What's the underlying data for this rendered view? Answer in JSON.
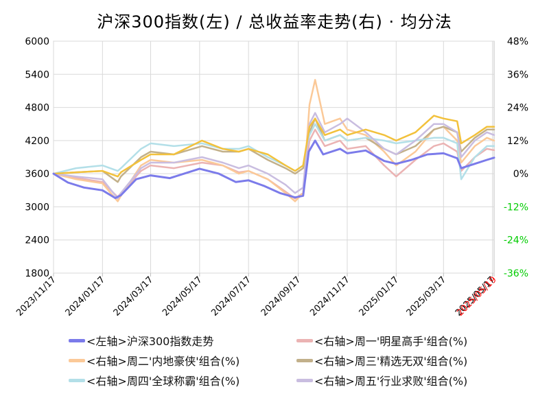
{
  "title": "沪深300指数(左)  /  总收益率走势(右) · 均分法",
  "chart_data": {
    "type": "line",
    "title": "沪深300指数(左)  /  总收益率走势(右) · 均分法",
    "x_start": "2023/11/17",
    "x_end": "2025/05/19",
    "x_tick_labels": [
      "2023/11/17",
      "2024/01/17",
      "2024/03/17",
      "2024/05/17",
      "2024/07/17",
      "2024/09/17",
      "2024/11/17",
      "2025/01/17",
      "2025/03/17",
      "2025/05/17"
    ],
    "x_last_label": "2025/05/19",
    "x_last_label_color": "#ff0000",
    "y_left": {
      "min": 1800,
      "max": 6000,
      "ticks": [
        "1800",
        "2400",
        "3000",
        "3600",
        "4200",
        "4800",
        "5400",
        "6000"
      ]
    },
    "y_right": {
      "min": -36,
      "max": 48,
      "ticks": [
        "-36%",
        "-24%",
        "-12%",
        "0%",
        "12%",
        "24%",
        "36%",
        "48%"
      ],
      "positive_color": "#000000",
      "negative_color": "#00cc00"
    },
    "grid": true,
    "legend_position": "bottom",
    "series": [
      {
        "name": "<左轴>沪深300指数走势",
        "axis": "left",
        "color": "#7b7bea",
        "points": [
          [
            "2023/11/17",
            3600
          ],
          [
            "2023/12/05",
            3440
          ],
          [
            "2023/12/25",
            3350
          ],
          [
            "2024/01/17",
            3300
          ],
          [
            "2024/02/02",
            3160
          ],
          [
            "2024/02/09",
            3210
          ],
          [
            "2024/02/28",
            3500
          ],
          [
            "2024/03/17",
            3570
          ],
          [
            "2024/04/10",
            3520
          ],
          [
            "2024/05/17",
            3690
          ],
          [
            "2024/06/10",
            3600
          ],
          [
            "2024/07/01",
            3450
          ],
          [
            "2024/07/17",
            3480
          ],
          [
            "2024/08/05",
            3380
          ],
          [
            "2024/08/25",
            3250
          ],
          [
            "2024/09/13",
            3170
          ],
          [
            "2024/09/23",
            3200
          ],
          [
            "2024/09/30",
            4000
          ],
          [
            "2024/10/08",
            4200
          ],
          [
            "2024/10/18",
            3950
          ],
          [
            "2024/11/08",
            4050
          ],
          [
            "2024/11/17",
            3970
          ],
          [
            "2024/12/10",
            4020
          ],
          [
            "2025/01/02",
            3830
          ],
          [
            "2025/01/17",
            3780
          ],
          [
            "2025/02/05",
            3850
          ],
          [
            "2025/02/25",
            3950
          ],
          [
            "2025/03/17",
            3970
          ],
          [
            "2025/04/03",
            3880
          ],
          [
            "2025/04/08",
            3700
          ],
          [
            "2025/04/25",
            3780
          ],
          [
            "2025/05/10",
            3850
          ],
          [
            "2025/05/19",
            3890
          ]
        ]
      },
      {
        "name": "<右轴>周一'明星高手'组合(%)",
        "axis": "right",
        "color": "#ebb3b3",
        "points": [
          [
            "2023/11/17",
            0.0
          ],
          [
            "2023/12/15",
            -1.5
          ],
          [
            "2024/01/17",
            -3.0
          ],
          [
            "2024/02/05",
            -8.5
          ],
          [
            "2024/02/09",
            -7.0
          ],
          [
            "2024/03/05",
            1.0
          ],
          [
            "2024/03/17",
            3.0
          ],
          [
            "2024/04/15",
            2.0
          ],
          [
            "2024/05/20",
            4.0
          ],
          [
            "2024/06/15",
            3.0
          ],
          [
            "2024/07/05",
            0.5
          ],
          [
            "2024/07/17",
            1.0
          ],
          [
            "2024/08/10",
            -2.0
          ],
          [
            "2024/09/01",
            -6.5
          ],
          [
            "2024/09/13",
            -9.0
          ],
          [
            "2024/09/23",
            -7.0
          ],
          [
            "2024/10/01",
            12.0
          ],
          [
            "2024/10/08",
            16.0
          ],
          [
            "2024/10/20",
            10.0
          ],
          [
            "2024/11/08",
            12.0
          ],
          [
            "2024/11/17",
            9.0
          ],
          [
            "2024/12/10",
            10.0
          ],
          [
            "2025/01/02",
            3.0
          ],
          [
            "2025/01/17",
            -1.0
          ],
          [
            "2025/02/10",
            5.0
          ],
          [
            "2025/03/05",
            10.0
          ],
          [
            "2025/03/17",
            11.0
          ],
          [
            "2025/04/03",
            8.0
          ],
          [
            "2025/04/08",
            1.0
          ],
          [
            "2025/04/25",
            6.0
          ],
          [
            "2025/05/10",
            9.0
          ],
          [
            "2025/05/19",
            8.5
          ]
        ]
      },
      {
        "name": "<右轴>周二'内地豪侠'组合(%)",
        "axis": "right",
        "color": "#fbc998",
        "points": [
          [
            "2023/11/17",
            0.0
          ],
          [
            "2023/12/15",
            -2.0
          ],
          [
            "2024/01/17",
            -3.5
          ],
          [
            "2024/02/05",
            -10.0
          ],
          [
            "2024/02/09",
            -8.0
          ],
          [
            "2024/03/05",
            3.0
          ],
          [
            "2024/03/17",
            5.0
          ],
          [
            "2024/04/15",
            4.0
          ],
          [
            "2024/05/20",
            5.0
          ],
          [
            "2024/06/15",
            3.0
          ],
          [
            "2024/07/05",
            0.0
          ],
          [
            "2024/07/17",
            1.0
          ],
          [
            "2024/08/10",
            -2.0
          ],
          [
            "2024/09/01",
            -7.0
          ],
          [
            "2024/09/13",
            -10.0
          ],
          [
            "2024/09/23",
            -7.0
          ],
          [
            "2024/10/01",
            25.0
          ],
          [
            "2024/10/08",
            34.0
          ],
          [
            "2024/10/20",
            18.0
          ],
          [
            "2024/11/08",
            20.0
          ],
          [
            "2024/11/17",
            16.0
          ],
          [
            "2024/12/10",
            14.0
          ],
          [
            "2025/01/02",
            8.0
          ],
          [
            "2025/01/17",
            3.0
          ],
          [
            "2025/02/10",
            8.0
          ],
          [
            "2025/03/05",
            16.0
          ],
          [
            "2025/03/17",
            17.0
          ],
          [
            "2025/04/03",
            12.0
          ],
          [
            "2025/04/08",
            4.0
          ],
          [
            "2025/04/25",
            10.0
          ],
          [
            "2025/05/10",
            13.0
          ],
          [
            "2025/05/19",
            12.0
          ]
        ]
      },
      {
        "name": "<右轴>周三'精选无双'组合(%)",
        "axis": "right",
        "color": "#c2b08a",
        "points": [
          [
            "2023/11/17",
            0.0
          ],
          [
            "2023/12/15",
            0.5
          ],
          [
            "2024/01/17",
            1.0
          ],
          [
            "2024/02/05",
            -3.0
          ],
          [
            "2024/02/09",
            -1.0
          ],
          [
            "2024/03/05",
            6.0
          ],
          [
            "2024/03/17",
            8.0
          ],
          [
            "2024/04/15",
            7.0
          ],
          [
            "2024/05/20",
            10.0
          ],
          [
            "2024/06/15",
            8.0
          ],
          [
            "2024/07/05",
            8.0
          ],
          [
            "2024/07/17",
            9.0
          ],
          [
            "2024/08/10",
            5.0
          ],
          [
            "2024/09/01",
            2.0
          ],
          [
            "2024/09/13",
            0.0
          ],
          [
            "2024/09/23",
            2.0
          ],
          [
            "2024/10/01",
            15.0
          ],
          [
            "2024/10/08",
            20.0
          ],
          [
            "2024/10/20",
            12.0
          ],
          [
            "2024/11/08",
            14.0
          ],
          [
            "2024/11/17",
            12.0
          ],
          [
            "2024/12/10",
            13.0
          ],
          [
            "2025/01/02",
            9.0
          ],
          [
            "2025/01/17",
            7.0
          ],
          [
            "2025/02/10",
            10.0
          ],
          [
            "2025/03/05",
            16.0
          ],
          [
            "2025/03/17",
            17.0
          ],
          [
            "2025/04/03",
            15.0
          ],
          [
            "2025/04/08",
            8.0
          ],
          [
            "2025/04/25",
            13.0
          ],
          [
            "2025/05/10",
            16.0
          ],
          [
            "2025/05/19",
            16.0
          ]
        ]
      },
      {
        "name": "<右轴>周四'全球称霸'组合(%)",
        "axis": "right",
        "color": "#b3dfe8",
        "points": [
          [
            "2023/11/17",
            0.0
          ],
          [
            "2023/12/15",
            2.0
          ],
          [
            "2024/01/17",
            3.0
          ],
          [
            "2024/02/05",
            1.0
          ],
          [
            "2024/02/09",
            2.0
          ],
          [
            "2024/03/05",
            9.0
          ],
          [
            "2024/03/17",
            11.0
          ],
          [
            "2024/04/15",
            10.0
          ],
          [
            "2024/05/20",
            11.0
          ],
          [
            "2024/06/15",
            9.0
          ],
          [
            "2024/07/05",
            9.0
          ],
          [
            "2024/07/17",
            10.0
          ],
          [
            "2024/08/10",
            6.0
          ],
          [
            "2024/09/01",
            3.0
          ],
          [
            "2024/09/13",
            1.0
          ],
          [
            "2024/09/23",
            3.0
          ],
          [
            "2024/10/01",
            14.0
          ],
          [
            "2024/10/08",
            18.0
          ],
          [
            "2024/10/20",
            12.0
          ],
          [
            "2024/11/08",
            14.0
          ],
          [
            "2024/11/17",
            12.0
          ],
          [
            "2024/12/10",
            13.0
          ],
          [
            "2025/01/02",
            12.0
          ],
          [
            "2025/01/17",
            11.0
          ],
          [
            "2025/02/10",
            12.0
          ],
          [
            "2025/03/05",
            13.0
          ],
          [
            "2025/03/17",
            13.0
          ],
          [
            "2025/04/03",
            11.0
          ],
          [
            "2025/04/08",
            -2.0
          ],
          [
            "2025/04/25",
            6.0
          ],
          [
            "2025/05/10",
            10.0
          ],
          [
            "2025/05/19",
            10.0
          ]
        ]
      },
      {
        "name": "<右轴>周五'行业求败'组合(%)",
        "axis": "right",
        "color": "#c9bde0",
        "points": [
          [
            "2023/11/17",
            0.0
          ],
          [
            "2023/12/15",
            -1.0
          ],
          [
            "2024/01/17",
            -2.0
          ],
          [
            "2024/02/05",
            -9.0
          ],
          [
            "2024/02/09",
            -7.0
          ],
          [
            "2024/03/05",
            2.0
          ],
          [
            "2024/03/17",
            4.0
          ],
          [
            "2024/04/15",
            4.0
          ],
          [
            "2024/05/20",
            6.0
          ],
          [
            "2024/06/15",
            4.0
          ],
          [
            "2024/07/05",
            2.0
          ],
          [
            "2024/07/17",
            3.0
          ],
          [
            "2024/08/10",
            0.0
          ],
          [
            "2024/09/01",
            -4.0
          ],
          [
            "2024/09/13",
            -7.0
          ],
          [
            "2024/09/23",
            -5.0
          ],
          [
            "2024/10/01",
            18.0
          ],
          [
            "2024/10/08",
            22.0
          ],
          [
            "2024/10/20",
            15.0
          ],
          [
            "2024/11/08",
            18.0
          ],
          [
            "2024/11/17",
            20.0
          ],
          [
            "2024/12/10",
            15.0
          ],
          [
            "2025/01/02",
            9.0
          ],
          [
            "2025/01/17",
            7.0
          ],
          [
            "2025/02/10",
            12.0
          ],
          [
            "2025/03/05",
            18.0
          ],
          [
            "2025/03/17",
            18.0
          ],
          [
            "2025/04/03",
            15.0
          ],
          [
            "2025/04/08",
            6.0
          ],
          [
            "2025/04/25",
            12.0
          ],
          [
            "2025/05/10",
            15.0
          ],
          [
            "2025/05/19",
            14.0
          ]
        ]
      },
      {
        "name": "",
        "axis": "right",
        "color": "#f2c13c",
        "points": [
          [
            "2023/11/17",
            0.0
          ],
          [
            "2023/12/15",
            0.5
          ],
          [
            "2024/01/17",
            1.0
          ],
          [
            "2024/02/05",
            -1.0
          ],
          [
            "2024/02/09",
            0.5
          ],
          [
            "2024/03/05",
            5.0
          ],
          [
            "2024/03/17",
            7.0
          ],
          [
            "2024/04/15",
            7.0
          ],
          [
            "2024/05/20",
            12.0
          ],
          [
            "2024/06/15",
            9.0
          ],
          [
            "2024/07/05",
            8.0
          ],
          [
            "2024/07/17",
            9.0
          ],
          [
            "2024/08/10",
            7.0
          ],
          [
            "2024/09/01",
            3.0
          ],
          [
            "2024/09/13",
            1.0
          ],
          [
            "2024/09/23",
            3.0
          ],
          [
            "2024/10/01",
            17.0
          ],
          [
            "2024/10/08",
            20.0
          ],
          [
            "2024/10/20",
            14.0
          ],
          [
            "2024/11/08",
            16.0
          ],
          [
            "2024/11/17",
            14.0
          ],
          [
            "2024/12/10",
            16.0
          ],
          [
            "2025/01/02",
            14.0
          ],
          [
            "2025/01/17",
            12.0
          ],
          [
            "2025/02/10",
            15.0
          ],
          [
            "2025/03/05",
            21.0
          ],
          [
            "2025/03/17",
            20.0
          ],
          [
            "2025/04/03",
            19.0
          ],
          [
            "2025/04/08",
            11.0
          ],
          [
            "2025/04/25",
            14.0
          ],
          [
            "2025/05/10",
            17.0
          ],
          [
            "2025/05/19",
            17.0
          ]
        ]
      }
    ]
  }
}
